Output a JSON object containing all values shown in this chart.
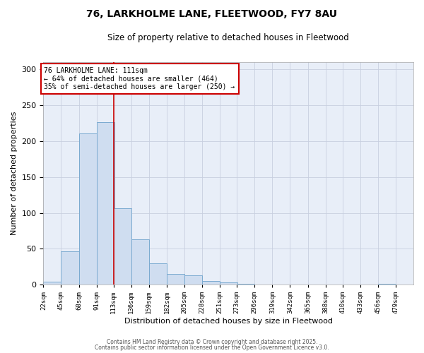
{
  "title": "76, LARKHOLME LANE, FLEETWOOD, FY7 8AU",
  "subtitle": "Size of property relative to detached houses in Fleetwood",
  "xlabel": "Distribution of detached houses by size in Fleetwood",
  "ylabel": "Number of detached properties",
  "bar_color": "#cfddf0",
  "bar_edge_color": "#7aaad0",
  "background_color": "#e8eef8",
  "grid_color": "#c8cfe0",
  "bins": [
    22,
    45,
    68,
    91,
    113,
    136,
    159,
    182,
    205,
    228,
    251,
    273,
    296,
    319,
    342,
    365,
    388,
    410,
    433,
    456,
    479
  ],
  "counts": [
    4,
    46,
    211,
    226,
    106,
    63,
    30,
    15,
    13,
    5,
    3,
    1,
    0,
    0,
    0,
    0,
    0,
    0,
    0,
    1
  ],
  "tick_labels": [
    "22sqm",
    "45sqm",
    "68sqm",
    "91sqm",
    "113sqm",
    "136sqm",
    "159sqm",
    "182sqm",
    "205sqm",
    "228sqm",
    "251sqm",
    "273sqm",
    "296sqm",
    "319sqm",
    "342sqm",
    "365sqm",
    "388sqm",
    "410sqm",
    "433sqm",
    "456sqm",
    "479sqm"
  ],
  "property_line_x": 113,
  "property_line_color": "#cc0000",
  "annotation_text_line1": "76 LARKHOLME LANE: 111sqm",
  "annotation_text_line2": "← 64% of detached houses are smaller (464)",
  "annotation_text_line3": "35% of semi-detached houses are larger (250) →",
  "annotation_box_color": "white",
  "annotation_box_edge_color": "#cc0000",
  "footer_line1": "Contains HM Land Registry data © Crown copyright and database right 2025.",
  "footer_line2": "Contains public sector information licensed under the Open Government Licence v3.0.",
  "ylim": [
    0,
    310
  ],
  "yticks": [
    0,
    50,
    100,
    150,
    200,
    250,
    300
  ],
  "figsize": [
    6.0,
    5.0
  ],
  "dpi": 100
}
